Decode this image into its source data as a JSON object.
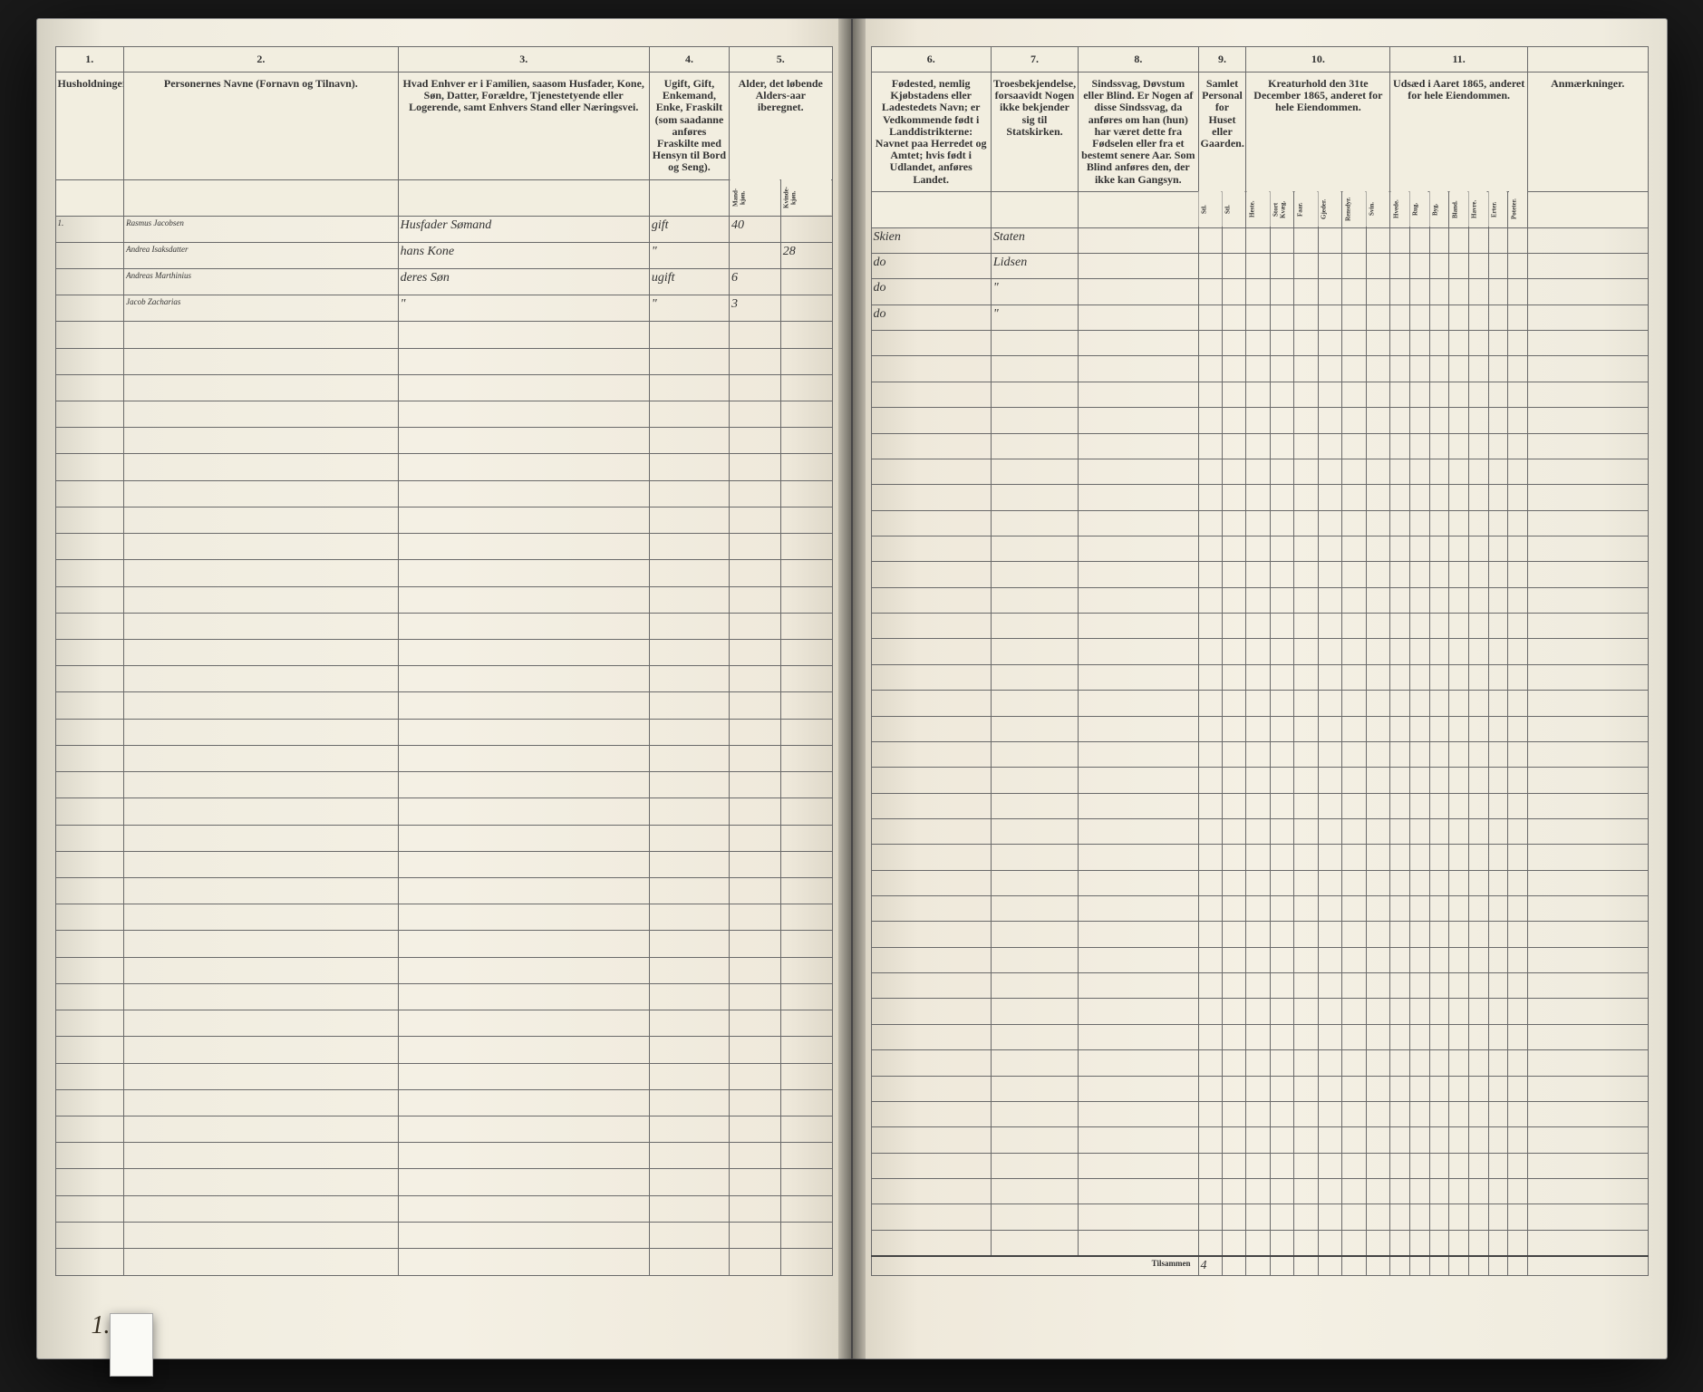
{
  "leftPage": {
    "columns": {
      "c1": {
        "num": "1.",
        "label": "Husholdninger."
      },
      "c2": {
        "num": "2.",
        "label": "Personernes Navne (Fornavn og Tilnavn)."
      },
      "c3": {
        "num": "3.",
        "label": "Hvad Enhver er i Familien, saasom Husfader, Kone, Søn, Datter, Forældre, Tjenestetyende eller Logerende, samt Enhvers Stand eller Næringsvei."
      },
      "c4": {
        "num": "4.",
        "label": "Ugift, Gift, Enkemand, Enke, Fraskilt (som saadanne anføres Fraskilte med Hensyn til Bord og Seng)."
      },
      "c5": {
        "num": "5.",
        "label": "Alder, det løbende Alders-aar iberegnet."
      },
      "c5a": "Mand-kjøn.",
      "c5b": "Kvinde-kjøn."
    },
    "rows": [
      {
        "hh": "1.",
        "name": "Rasmus Jacobsen",
        "rel": "Husfader Sømand",
        "status": "gift",
        "ageM": "40",
        "ageK": ""
      },
      {
        "hh": "",
        "name": "Andrea Isaksdatter",
        "rel": "hans Kone",
        "status": "\"",
        "ageM": "",
        "ageK": "28"
      },
      {
        "hh": "",
        "name": "Andreas Marthinius",
        "rel": "deres Søn",
        "status": "ugift",
        "ageM": "6",
        "ageK": ""
      },
      {
        "hh": "",
        "name": "Jacob Zacharias",
        "rel": "\"",
        "status": "\"",
        "ageM": "3",
        "ageK": ""
      }
    ],
    "emptyRows": 36,
    "pageNumber": "1."
  },
  "rightPage": {
    "columns": {
      "c6": {
        "num": "6.",
        "label": "Fødested, nemlig Kjøbstadens eller Ladestedets Navn; er Vedkommende født i Landdistrikterne: Navnet paa Herredet og Amtet; hvis født i Udlandet, anføres Landet."
      },
      "c7": {
        "num": "7.",
        "label": "Troesbekjendelse, forsaavidt Nogen ikke bekjender sig til Statskirken."
      },
      "c8": {
        "num": "8.",
        "label": "Sindssvag, Døvstum eller Blind. Er Nogen af disse Sindssvag, da anføres om han (hun) har været dette fra Fødselen eller fra et bestemt senere Aar. Som Blind anføres den, der ikke kan Gangsyn."
      },
      "c9": {
        "num": "9.",
        "sub": [
          "Samlet Personal for Huset eller Gaarden."
        ]
      },
      "c10": {
        "num": "10.",
        "label": "Kreaturhold den 31te December 1865, anderet for hele Eiendommen.",
        "sub": [
          "Heste.",
          "Stort Kvæg.",
          "Faar.",
          "Gjeder.",
          "Rensdyr.",
          "Svin."
        ]
      },
      "c11": {
        "num": "11.",
        "label": "Udsæd i Aaret 1865, anderet for hele Eiendommen.",
        "sub": [
          "Hvede.",
          "Rug.",
          "Byg.",
          "Bland.",
          "Havre.",
          "Erter.",
          "Poteter."
        ]
      },
      "remarks": "Anmærkninger."
    },
    "rows": [
      {
        "birthplace": "Skien",
        "faith": "Staten"
      },
      {
        "birthplace": "do",
        "faith": "Lidsen"
      },
      {
        "birthplace": "do",
        "faith": "\""
      },
      {
        "birthplace": "do",
        "faith": "\""
      }
    ],
    "emptyRows": 36,
    "footerLabel": "Tilsammen",
    "footerMark": "4"
  },
  "colors": {
    "paper": "#f4f0e4",
    "ink": "#3a3224",
    "rule": "#6a6a6a",
    "background": "#1a1a1a"
  }
}
